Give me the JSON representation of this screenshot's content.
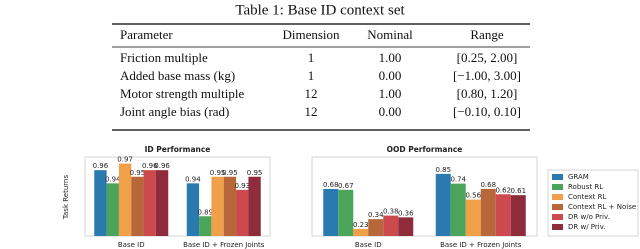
{
  "table": {
    "caption": "Table 1: Base ID context set",
    "headers": [
      "Parameter",
      "Dimension",
      "Nominal",
      "Range"
    ],
    "rows": [
      [
        "Friction multiple",
        "1",
        "1.00",
        "[0.25, 2.00]"
      ],
      [
        "Added base mass (kg)",
        "1",
        "0.00",
        "[−1.00, 3.00]"
      ],
      [
        "Motor strength multiple",
        "12",
        "1.00",
        "[0.80, 1.20]"
      ],
      [
        "Joint angle bias (rad)",
        "12",
        "0.00",
        "[−0.10, 0.10]"
      ]
    ]
  },
  "chart_data": {
    "type": "bar",
    "ylabel": "Task Returns",
    "subplots": [
      {
        "title": "ID Performance",
        "categories": [
          "Base ID",
          "Base ID + Frozen Joints"
        ],
        "ylim": [
          0.86,
          0.98
        ]
      },
      {
        "title": "OOD Performance",
        "categories": [
          "Base ID",
          "Base ID + Frozen Joints"
        ],
        "ylim": [
          0.15,
          1.04
        ]
      }
    ],
    "series": [
      {
        "name": "GRAM",
        "color": "#2a7ab0",
        "values": [
          [
            0.96,
            0.94
          ],
          [
            0.68,
            0.85
          ]
        ]
      },
      {
        "name": "Robust RL",
        "color": "#4aa45a",
        "values": [
          [
            0.94,
            0.89
          ],
          [
            0.67,
            0.74
          ]
        ]
      },
      {
        "name": "Context RL",
        "color": "#f0a048",
        "values": [
          [
            0.97,
            0.95
          ],
          [
            0.23,
            0.56
          ]
        ]
      },
      {
        "name": "Context RL + Noise",
        "color": "#b8673a",
        "values": [
          [
            0.95,
            0.95
          ],
          [
            0.34,
            0.68
          ]
        ]
      },
      {
        "name": "DR w/o Priv.",
        "color": "#cc4a4e",
        "values": [
          [
            0.96,
            0.93
          ],
          [
            0.38,
            0.62
          ]
        ]
      },
      {
        "name": "DR w/ Priv.",
        "color": "#8e2c3c",
        "values": [
          [
            0.96,
            0.95
          ],
          [
            0.36,
            0.61
          ]
        ]
      }
    ],
    "legend": "right"
  }
}
